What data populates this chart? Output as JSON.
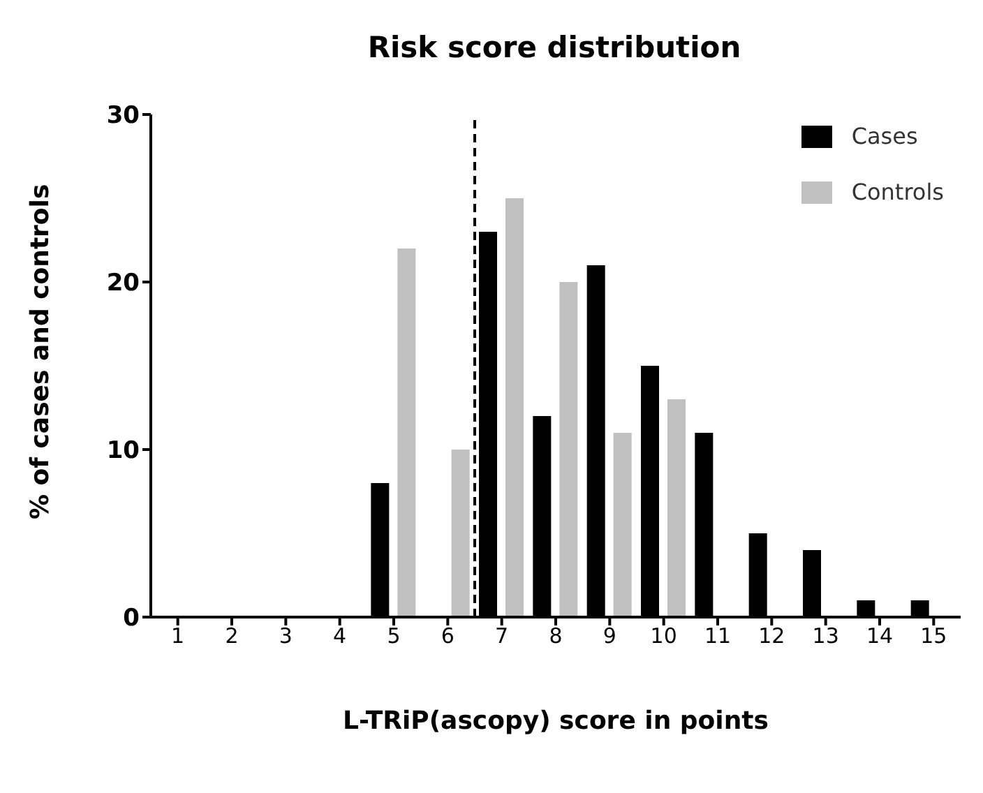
{
  "chart_data": {
    "type": "bar",
    "title": "Risk score distribution",
    "xlabel": "L-TRiP(ascopy) score in points",
    "ylabel": "% of cases and controls",
    "x": [
      1,
      2,
      3,
      4,
      5,
      6,
      7,
      8,
      9,
      10,
      11,
      12,
      13,
      14,
      15
    ],
    "series": [
      {
        "name": "Cases",
        "color": "#000000",
        "values": [
          0,
          0,
          0,
          0,
          8,
          0,
          23,
          12,
          21,
          15,
          11,
          5,
          4,
          1,
          1
        ]
      },
      {
        "name": "Controls",
        "color": "#c0c0c0",
        "values": [
          0,
          0,
          0,
          0,
          22,
          10,
          25,
          20,
          11,
          13,
          0,
          0,
          0,
          0,
          0
        ]
      }
    ],
    "xlim": [
      0.5,
      15.5
    ],
    "xticks": [
      1,
      2,
      3,
      4,
      5,
      6,
      7,
      8,
      9,
      10,
      11,
      12,
      13,
      14,
      15
    ],
    "ylim": [
      0,
      30
    ],
    "yticks": [
      0,
      10,
      20,
      30
    ],
    "grid": false,
    "legend": "top right",
    "ref_lines": [
      {
        "axis": "x",
        "value": 6.5,
        "color": "#000000",
        "line_style": "dashed"
      }
    ]
  }
}
